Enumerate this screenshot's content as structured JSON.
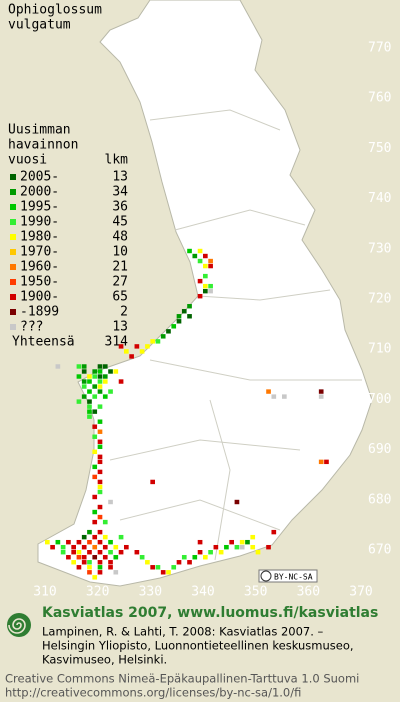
{
  "title_lines": [
    "Ophioglossum",
    "vulgatum"
  ],
  "legend": {
    "header_lines": [
      "Uusimman",
      "havainnon"
    ],
    "period_header": "vuosi",
    "count_header": "lkm",
    "rows": [
      {
        "period": "2005-",
        "count": 13,
        "color": "#006400"
      },
      {
        "period": "2000-",
        "count": 34,
        "color": "#009a00"
      },
      {
        "period": "1995-",
        "count": 36,
        "color": "#00c800"
      },
      {
        "period": "1990-",
        "count": 45,
        "color": "#33ee33"
      },
      {
        "period": "1980-",
        "count": 48,
        "color": "#ffff00"
      },
      {
        "period": "1970-",
        "count": 10,
        "color": "#ffc800"
      },
      {
        "period": "1960-",
        "count": 21,
        "color": "#ff7800"
      },
      {
        "period": "1950-",
        "count": 27,
        "color": "#ff3c00"
      },
      {
        "period": "1900-",
        "count": 65,
        "color": "#d20000"
      },
      {
        "period": "-1899",
        "count": 2,
        "color": "#7a0000"
      },
      {
        "period": "???",
        "count": 13,
        "color": "#c8c8c8"
      }
    ],
    "total_label": "Yhteensä",
    "total": 314
  },
  "axes": {
    "y_ticks": [
      770,
      760,
      750,
      740,
      730,
      720,
      710,
      700,
      690,
      680,
      670
    ],
    "x_ticks": [
      310,
      320,
      330,
      340,
      350,
      360,
      370
    ]
  },
  "squares": [
    [
      729,
      337,
      2
    ],
    [
      729,
      339,
      4
    ],
    [
      728,
      338,
      1
    ],
    [
      728,
      340,
      8
    ],
    [
      727,
      339,
      3
    ],
    [
      727,
      341,
      6
    ],
    [
      726,
      340,
      4
    ],
    [
      726,
      341,
      8
    ],
    [
      724,
      340,
      3
    ],
    [
      723,
      339,
      8
    ],
    [
      722,
      340,
      4
    ],
    [
      722,
      341,
      3
    ],
    [
      721,
      340,
      0
    ],
    [
      721,
      341,
      10
    ],
    [
      720,
      339,
      8
    ],
    [
      718,
      337,
      1
    ],
    [
      717,
      336,
      0
    ],
    [
      716,
      337,
      0
    ],
    [
      716,
      335,
      1
    ],
    [
      715,
      335,
      0
    ],
    [
      714,
      334,
      2
    ],
    [
      713,
      333,
      0
    ],
    [
      712,
      332,
      1
    ],
    [
      711,
      331,
      3
    ],
    [
      711,
      330,
      4
    ],
    [
      710,
      329,
      4
    ],
    [
      710,
      327,
      8
    ],
    [
      709,
      328,
      4
    ],
    [
      709,
      325,
      4
    ],
    [
      710,
      324,
      8
    ],
    [
      708,
      326,
      8
    ],
    [
      706,
      316,
      3
    ],
    [
      706,
      317,
      1
    ],
    [
      706,
      320,
      0
    ],
    [
      706,
      321,
      0
    ],
    [
      705,
      317,
      0
    ],
    [
      705,
      319,
      1
    ],
    [
      705,
      320,
      2
    ],
    [
      705,
      322,
      0
    ],
    [
      705,
      323,
      4
    ],
    [
      704,
      316,
      2
    ],
    [
      704,
      318,
      4
    ],
    [
      704,
      319,
      3
    ],
    [
      704,
      320,
      0
    ],
    [
      704,
      321,
      1
    ],
    [
      703,
      317,
      1
    ],
    [
      703,
      318,
      2
    ],
    [
      703,
      320,
      3
    ],
    [
      703,
      321,
      4
    ],
    [
      703,
      324,
      8
    ],
    [
      702,
      317,
      3
    ],
    [
      702,
      319,
      1
    ],
    [
      702,
      320,
      4
    ],
    [
      701,
      318,
      2
    ],
    [
      701,
      320,
      1
    ],
    [
      701,
      322,
      3
    ],
    [
      700,
      317,
      1
    ],
    [
      700,
      319,
      3
    ],
    [
      700,
      321,
      2
    ],
    [
      699,
      316,
      3
    ],
    [
      699,
      318,
      0
    ],
    [
      698,
      318,
      3
    ],
    [
      698,
      320,
      3
    ],
    [
      697,
      318,
      2
    ],
    [
      697,
      319,
      0
    ],
    [
      696,
      318,
      3
    ],
    [
      695,
      320,
      2
    ],
    [
      694,
      319,
      8
    ],
    [
      693,
      320,
      6
    ],
    [
      692,
      319,
      3
    ],
    [
      691,
      320,
      8
    ],
    [
      690,
      320,
      2
    ],
    [
      689,
      319,
      4
    ],
    [
      688,
      320,
      8
    ],
    [
      687,
      320,
      8
    ],
    [
      686,
      319,
      2
    ],
    [
      685,
      320,
      8
    ],
    [
      684,
      319,
      7
    ],
    [
      683,
      320,
      8
    ],
    [
      682,
      320,
      4
    ],
    [
      681,
      320,
      3
    ],
    [
      680,
      319,
      8
    ],
    [
      679,
      322,
      10
    ],
    [
      678,
      320,
      8
    ],
    [
      677,
      319,
      2
    ],
    [
      676,
      320,
      7
    ],
    [
      675,
      319,
      8
    ],
    [
      675,
      321,
      3
    ],
    [
      673,
      318,
      1
    ],
    [
      673,
      320,
      8
    ],
    [
      672,
      317,
      0
    ],
    [
      672,
      319,
      8
    ],
    [
      672,
      321,
      4
    ],
    [
      672,
      324,
      3
    ],
    [
      671,
      310,
      4
    ],
    [
      671,
      312,
      2
    ],
    [
      671,
      314,
      8
    ],
    [
      671,
      316,
      8
    ],
    [
      671,
      318,
      7
    ],
    [
      671,
      320,
      8
    ],
    [
      671,
      322,
      2
    ],
    [
      670,
      311,
      8
    ],
    [
      670,
      313,
      3
    ],
    [
      670,
      315,
      8
    ],
    [
      670,
      317,
      8
    ],
    [
      670,
      319,
      6
    ],
    [
      670,
      321,
      8
    ],
    [
      670,
      323,
      4
    ],
    [
      670,
      325,
      8
    ],
    [
      669,
      313,
      3
    ],
    [
      669,
      315,
      8
    ],
    [
      669,
      316,
      4
    ],
    [
      669,
      318,
      8
    ],
    [
      669,
      320,
      8
    ],
    [
      669,
      322,
      3
    ],
    [
      669,
      324,
      8
    ],
    [
      668,
      314,
      8
    ],
    [
      668,
      316,
      7
    ],
    [
      668,
      317,
      8
    ],
    [
      668,
      319,
      9
    ],
    [
      668,
      321,
      8
    ],
    [
      668,
      323,
      2
    ],
    [
      667,
      315,
      4
    ],
    [
      667,
      317,
      8
    ],
    [
      667,
      318,
      3
    ],
    [
      667,
      320,
      8
    ],
    [
      667,
      322,
      8
    ],
    [
      666,
      316,
      8
    ],
    [
      666,
      318,
      4
    ],
    [
      666,
      320,
      2
    ],
    [
      666,
      322,
      8
    ],
    [
      665,
      318,
      7
    ],
    [
      665,
      320,
      8
    ],
    [
      665,
      323,
      10
    ],
    [
      664,
      319,
      4
    ],
    [
      669,
      327,
      8
    ],
    [
      668,
      328,
      3
    ],
    [
      667,
      329,
      4
    ],
    [
      666,
      330,
      8
    ],
    [
      666,
      331,
      3
    ],
    [
      665,
      332,
      8
    ],
    [
      665,
      333,
      4
    ],
    [
      666,
      334,
      3
    ],
    [
      667,
      335,
      8
    ],
    [
      668,
      336,
      3
    ],
    [
      667,
      337,
      8
    ],
    [
      668,
      338,
      2
    ],
    [
      669,
      339,
      8
    ],
    [
      668,
      340,
      4
    ],
    [
      669,
      341,
      3
    ],
    [
      670,
      342,
      8
    ],
    [
      669,
      343,
      4
    ],
    [
      670,
      344,
      2
    ],
    [
      671,
      345,
      8
    ],
    [
      670,
      346,
      3
    ],
    [
      671,
      347,
      4
    ],
    [
      671,
      348,
      1
    ],
    [
      670,
      349,
      4
    ],
    [
      672,
      349,
      4
    ],
    [
      669,
      350,
      4
    ],
    [
      670,
      347,
      10
    ],
    [
      670,
      352,
      8
    ],
    [
      671,
      339,
      8
    ],
    [
      701,
      352,
      6
    ],
    [
      700,
      353,
      10
    ],
    [
      700,
      355,
      10
    ],
    [
      701,
      362,
      9
    ],
    [
      700,
      362,
      10
    ],
    [
      687,
      363,
      8
    ],
    [
      687,
      362,
      6
    ],
    [
      683,
      330,
      8
    ],
    [
      679,
      346,
      9
    ],
    [
      673,
      353,
      8
    ],
    [
      706,
      312,
      10
    ]
  ],
  "badge": "BY-NC-SA",
  "footer": {
    "brand": "Kasviatlas 2007, www.luomus.fi/kasviatlas",
    "citation_lines": [
      "Lampinen, R. & Lahti, T. 2008: Kasviatlas 2007. –",
      "Helsingin Yliopisto, Luonnontieteellinen keskusmuseo,",
      "Kasvimuseo, Helsinki."
    ],
    "license_lines": [
      "Creative Commons Nimeä-Epäkaupallinen-Tarttuva 1.0 Suomi",
      "http://creativecommons.org/licenses/by-nc-sa/1.0/fi"
    ]
  }
}
